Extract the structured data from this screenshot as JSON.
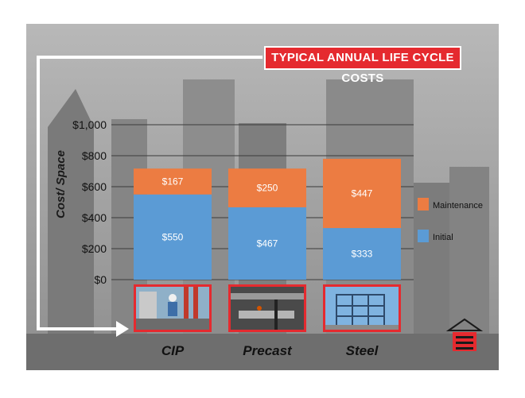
{
  "chart_data": {
    "type": "bar",
    "stacked": true,
    "title": "TYPICAL ANNUAL LIFE CYCLE COSTS",
    "ylabel": "Cost/ Space",
    "xlabel": "",
    "categories": [
      "CIP",
      "Precast",
      "Steel"
    ],
    "series": [
      {
        "name": "Initial",
        "values": [
          550,
          467,
          333
        ],
        "labels": [
          "$550",
          "$467",
          "$333"
        ],
        "color": "#5b9bd5"
      },
      {
        "name": "Maintenance",
        "values": [
          167,
          250,
          447
        ],
        "labels": [
          "$167",
          "$250",
          "$447"
        ],
        "color": "#ec7c42"
      }
    ],
    "ylim": [
      0,
      1000
    ],
    "yticks": [
      0,
      200,
      400,
      600,
      800,
      1000
    ],
    "yticklabels": [
      "$0",
      "$200",
      "$400",
      "$600",
      "$800",
      "$1,000"
    ],
    "grid": true,
    "legend_position": "right",
    "legend_order": [
      "Maintenance",
      "Initial"
    ]
  },
  "colors": {
    "accent": "#e52a2f",
    "initial": "#5b9bd5",
    "maintenance": "#ec7c42",
    "background": "#9a9a9a"
  },
  "icons": [
    "construction-photo",
    "precast-photo",
    "steel-frame-photo",
    "building-logo-icon"
  ]
}
